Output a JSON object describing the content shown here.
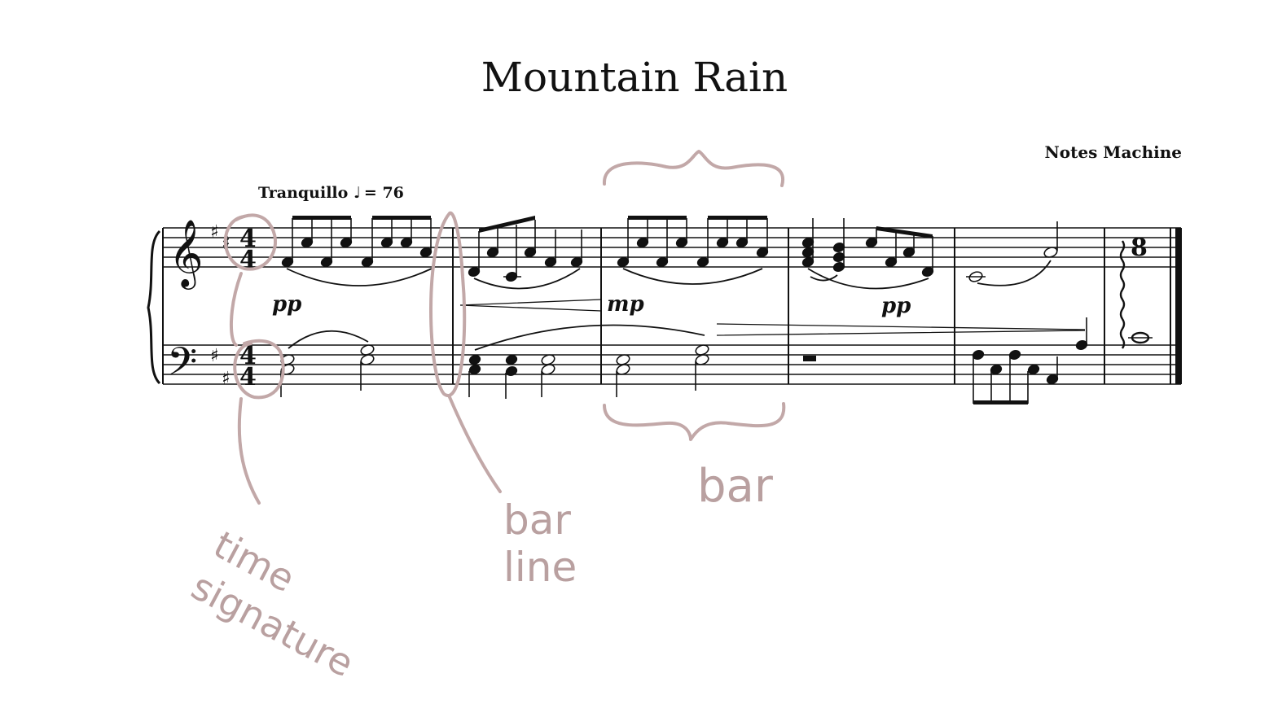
{
  "score": {
    "title": "Mountain Rain",
    "composer": "Notes Machine",
    "tempo_text": "Tranquillo",
    "tempo_value": "= 76",
    "time_signature_top": "4",
    "time_signature_bottom": "4",
    "dynamics": [
      "pp",
      "mp",
      "pp"
    ],
    "final_tuplet": "8"
  },
  "annotations": {
    "time_signature": "time signature",
    "bar_line": "bar line",
    "bar": "bar"
  },
  "colors": {
    "ink": "#111111",
    "annotation": "#b9a0a0"
  }
}
